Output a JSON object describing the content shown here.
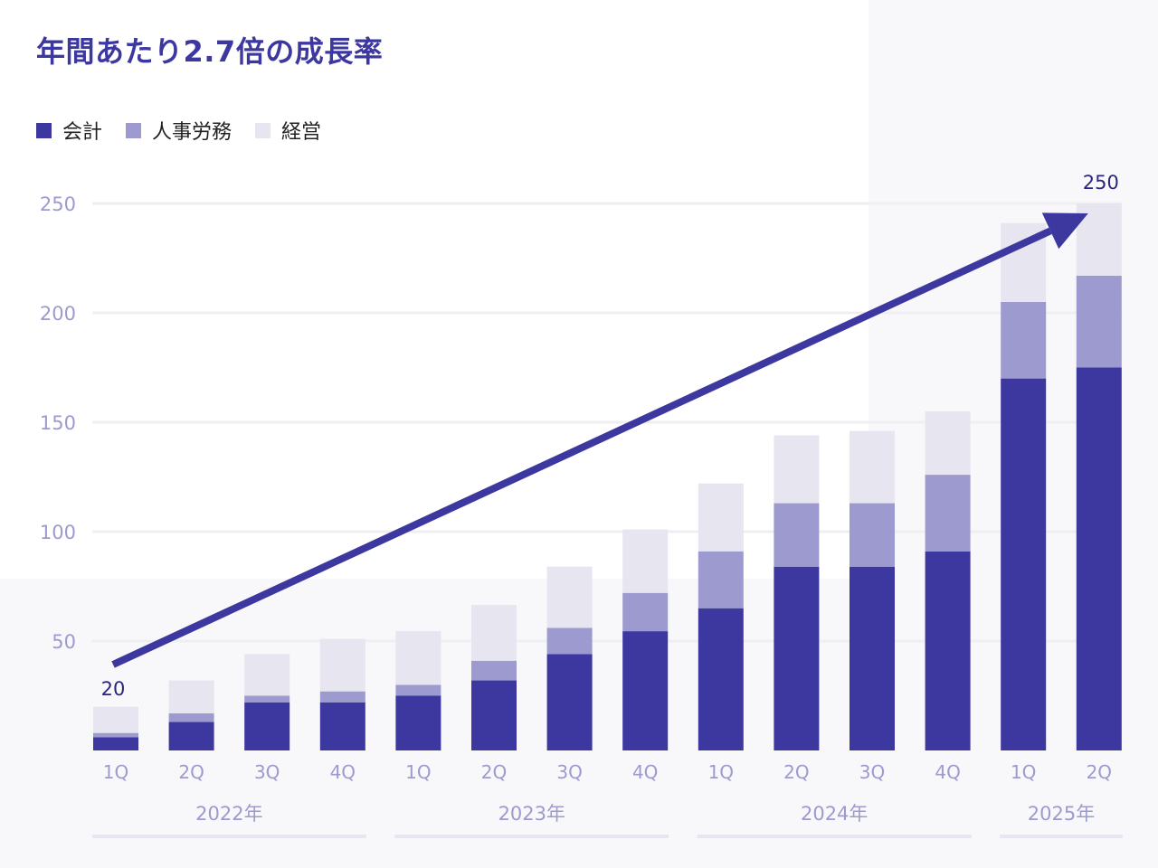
{
  "chart_data": {
    "type": "bar",
    "stacked": true,
    "title": "年間あたり2.7倍の成長率",
    "categories": [
      "1Q",
      "2Q",
      "3Q",
      "4Q",
      "1Q",
      "2Q",
      "3Q",
      "4Q",
      "1Q",
      "2Q",
      "3Q",
      "4Q",
      "1Q",
      "2Q"
    ],
    "groups": [
      {
        "label": "2022年",
        "count": 4
      },
      {
        "label": "2023年",
        "count": 4
      },
      {
        "label": "2024年",
        "count": 4
      },
      {
        "label": "2025年",
        "count": 2
      }
    ],
    "series": [
      {
        "name": "会計",
        "color": "#3d37a0",
        "values": [
          6,
          13,
          22,
          22,
          25,
          32,
          44,
          54.5,
          65,
          84,
          84,
          91,
          170,
          175
        ]
      },
      {
        "name": "人事労務",
        "color": "#9d9ad0",
        "values": [
          2,
          4,
          3,
          5,
          5,
          9,
          12,
          17.5,
          26,
          29,
          29,
          35,
          35,
          42
        ]
      },
      {
        "name": "経営",
        "color": "#e6e5f0",
        "values": [
          12,
          15,
          19,
          24,
          24.5,
          25.5,
          28,
          29,
          31,
          31,
          33,
          29,
          36,
          33
        ]
      }
    ],
    "yticks": [
      50,
      100,
      150,
      200,
      250
    ],
    "ylim": [
      0,
      250
    ],
    "grid": true,
    "legend_position": "top-left",
    "annotations": [
      {
        "text": "20",
        "category_index": 0
      },
      {
        "text": "250",
        "category_index": 13
      }
    ],
    "trend_arrow": {
      "from_index": 0,
      "to_index": 13,
      "color": "#3d37a0"
    }
  }
}
